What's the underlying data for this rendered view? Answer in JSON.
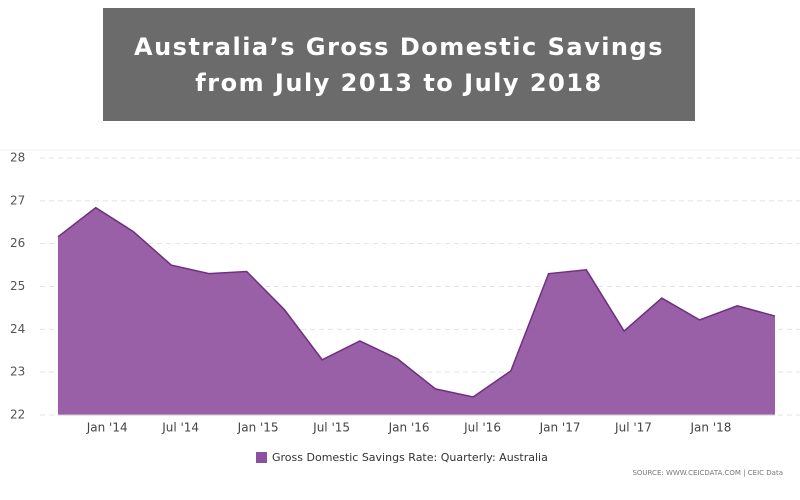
{
  "chart_data": {
    "type": "area",
    "title": "Australia’s Gross Domestic Savings from July 2013 to July 2018",
    "categories": [
      null,
      "Jan '14",
      null,
      "Jul '14",
      null,
      "Jan '15",
      null,
      "Jul '15",
      null,
      "Jan '16",
      null,
      "Jul '16",
      null,
      "Jan '17",
      null,
      "Jul '17",
      null,
      "Jan '18",
      null,
      null
    ],
    "series": [
      {
        "name": "Gross Domestic Savings Rate: Quarterly: Australia",
        "color": "#8e4f9e",
        "values": [
          26.16,
          26.84,
          26.28,
          25.5,
          25.3,
          25.35,
          24.46,
          23.29,
          23.73,
          23.31,
          22.61,
          22.42,
          23.03,
          25.3,
          25.39,
          23.96,
          24.73,
          24.22,
          24.55,
          24.31
        ]
      }
    ],
    "ylim": [
      22,
      28
    ],
    "yticks": [
      22,
      23,
      24,
      25,
      26,
      27,
      28
    ],
    "grid": true,
    "source": "SOURCE: WWW.CEICDATA.COM | CEIC Data"
  }
}
